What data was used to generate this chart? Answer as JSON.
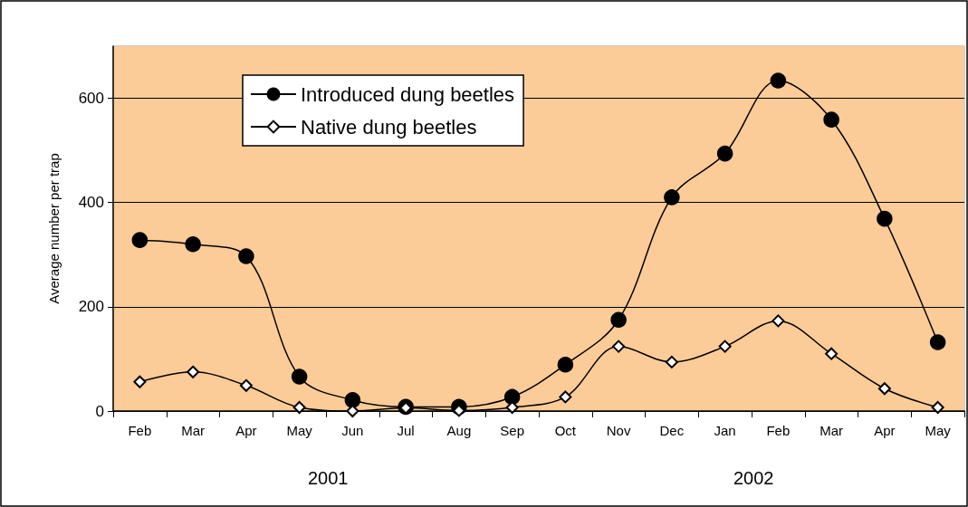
{
  "chart_data": {
    "type": "line",
    "ylabel": "Average number per trap",
    "categories": [
      "Feb",
      "Mar",
      "Apr",
      "May",
      "Jun",
      "Jul",
      "Aug",
      "Sep",
      "Oct",
      "Nov",
      "Dec",
      "Jan",
      "Feb",
      "Mar",
      "Apr",
      "May"
    ],
    "series": [
      {
        "name": "Introduced dung beetles",
        "color": "#000000",
        "marker": "circle",
        "values": [
          328,
          320,
          297,
          66,
          21,
          8,
          8,
          27,
          89,
          175,
          410,
          494,
          634,
          559,
          369,
          132
        ]
      },
      {
        "name": "Native dung beetles",
        "color": "#000000",
        "marker": "diamond",
        "values": [
          56,
          75,
          49,
          7,
          0,
          6,
          1,
          7,
          27,
          124,
          94,
          124,
          173,
          110,
          43,
          7
        ]
      }
    ],
    "ylim": [
      0,
      700
    ],
    "yticks": [
      0,
      200,
      400,
      600
    ],
    "grid": "y",
    "legend": "top left",
    "annotations": [
      "2001",
      "2002"
    ]
  }
}
